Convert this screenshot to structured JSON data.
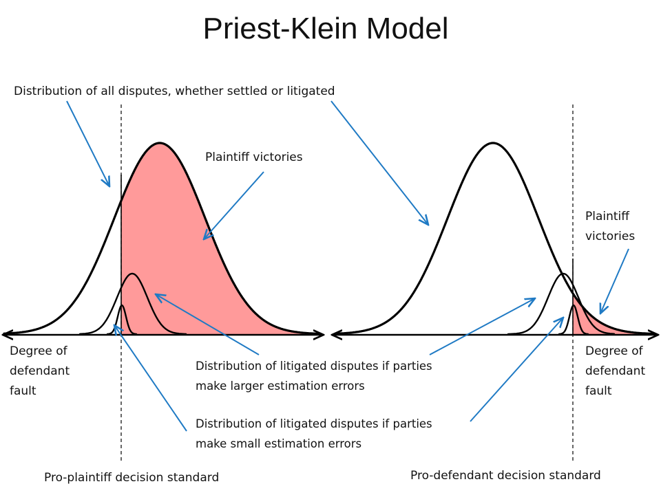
{
  "title": "Priest-Klein Model",
  "labels": {
    "all_disputes": "Distribution of all disputes, whether settled or litigated",
    "plaintiff_victories_left": "Plaintiff victories",
    "plaintiff_victories_right_1": "Plaintiff",
    "plaintiff_victories_right_2": "victories",
    "fault_left": [
      "Degree of",
      "defendant",
      "fault"
    ],
    "fault_right": [
      "Degree of",
      "defendant",
      "fault"
    ],
    "larger_errors": [
      "Distribution of litigated disputes if parties",
      "make larger estimation errors"
    ],
    "small_errors": [
      "Distribution of litigated disputes if parties",
      "make small estimation errors"
    ],
    "pro_plaintiff": "Pro-plaintiff decision standard",
    "pro_defendant": "Pro-defendant decision standard"
  },
  "colors": {
    "shading": "#ff9a9a",
    "arrow": "#1f7ac4",
    "curve": "#000000"
  }
}
